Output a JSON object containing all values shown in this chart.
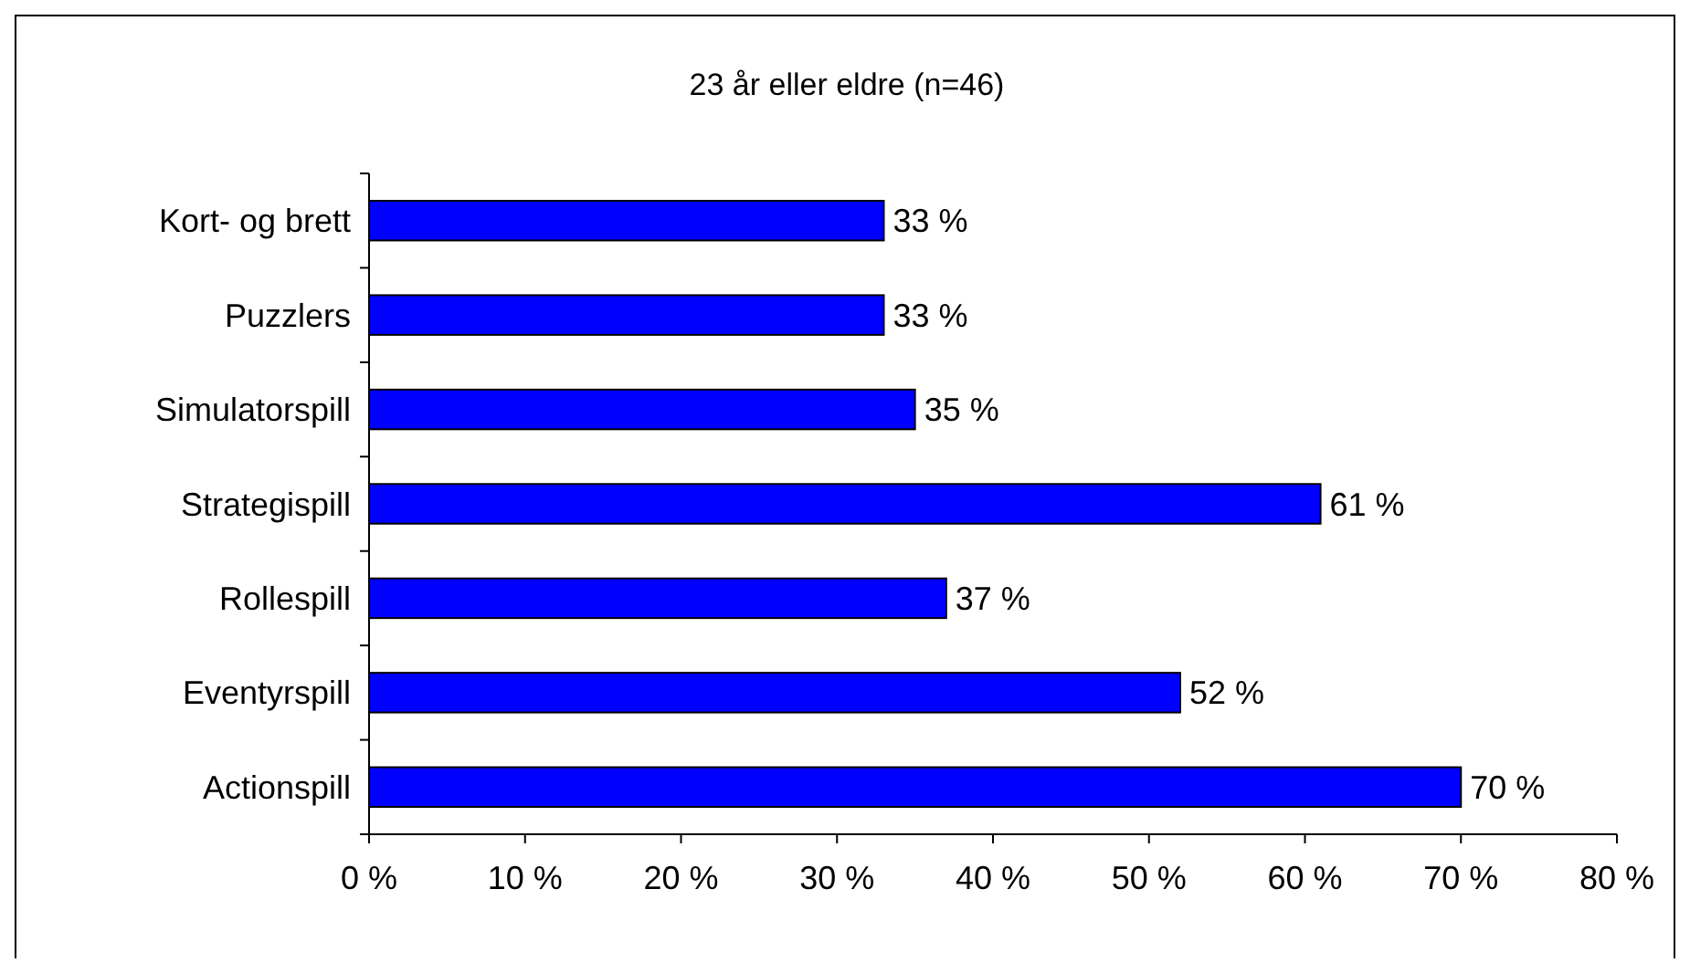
{
  "chart_data": {
    "type": "bar",
    "orientation": "horizontal",
    "title": "23 år eller eldre (n=46)",
    "categories": [
      "Kort- og brett",
      "Puzzlers",
      "Simulatorspill",
      "Strategispill",
      "Rollespill",
      "Eventyrspill",
      "Actionspill"
    ],
    "values": [
      33,
      33,
      35,
      61,
      37,
      52,
      70
    ],
    "value_labels": [
      "33 %",
      "33 %",
      "35 %",
      "61 %",
      "37 %",
      "52 %",
      "70 %"
    ],
    "color": "#0000ff",
    "xlim": [
      0,
      80
    ],
    "xticks": [
      {
        "value": 0,
        "label": "0 %"
      },
      {
        "value": 10,
        "label": "10 %"
      },
      {
        "value": 20,
        "label": "20 %"
      },
      {
        "value": 30,
        "label": "30 %"
      },
      {
        "value": 40,
        "label": "40 %"
      },
      {
        "value": 50,
        "label": "50 %"
      },
      {
        "value": 60,
        "label": "60 %"
      },
      {
        "value": 70,
        "label": "70 %"
      },
      {
        "value": 80,
        "label": "80 %"
      }
    ],
    "grid": false
  }
}
